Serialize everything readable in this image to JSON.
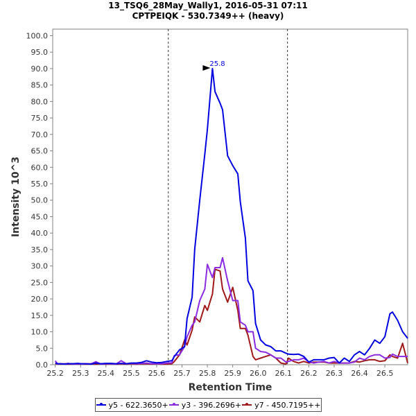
{
  "chart_data": {
    "type": "line",
    "title": "13_TSQ6_28May_Wally1, 2016-05-31 07:11",
    "subtitle": "CPTPEIQK - 530.7349++ (heavy)",
    "xlabel": "Retention Time",
    "ylabel": "Intensity 10^3",
    "xlim": [
      25.19,
      26.59
    ],
    "ylim": [
      0,
      102
    ],
    "xticks": [
      "25.2",
      "25.3",
      "25.4",
      "25.5",
      "25.6",
      "25.7",
      "25.8",
      "25.9",
      "26.0",
      "26.1",
      "26.2",
      "26.3",
      "26.4",
      "26.5"
    ],
    "yticks": [
      "0.0",
      "5.0",
      "10.0",
      "15.0",
      "20.0",
      "25.0",
      "30.0",
      "35.0",
      "40.0",
      "45.0",
      "50.0",
      "55.0",
      "60.0",
      "65.0",
      "70.0",
      "75.0",
      "80.0",
      "85.0",
      "90.0",
      "95.0",
      "100.0"
    ],
    "vlines": [
      25.646,
      26.116
    ],
    "peak_label": "25.8",
    "peak_x": 25.82,
    "peak_y": 90,
    "series": [
      {
        "name": "y5 - 622.3650+",
        "color": "#0000e0",
        "x": [
          25.2,
          25.21,
          25.22,
          25.24,
          25.25,
          25.27,
          25.29,
          25.3,
          25.32,
          25.34,
          25.36,
          25.38,
          25.4,
          25.42,
          25.44,
          25.46,
          25.48,
          25.5,
          25.52,
          25.54,
          25.56,
          25.58,
          25.6,
          25.62,
          25.64,
          25.66,
          25.67,
          25.69,
          25.71,
          25.72,
          25.74,
          25.75,
          25.77,
          25.79,
          25.8,
          25.82,
          25.83,
          25.85,
          25.86,
          25.88,
          25.9,
          25.92,
          25.93,
          25.95,
          25.96,
          25.98,
          25.99,
          26.01,
          26.03,
          26.05,
          26.07,
          26.09,
          26.11,
          26.12,
          26.14,
          26.16,
          26.18,
          26.2,
          26.22,
          26.24,
          26.26,
          26.28,
          26.3,
          26.32,
          26.34,
          26.36,
          26.38,
          26.4,
          26.42,
          26.44,
          26.46,
          26.48,
          26.5,
          26.52,
          26.53,
          26.55,
          26.57,
          26.59
        ],
        "y": [
          0.5,
          0.3,
          0.3,
          0.2,
          0.3,
          0.3,
          0.4,
          0.3,
          0.3,
          0.2,
          0.5,
          0.3,
          0.4,
          0.4,
          0.3,
          0.4,
          0.3,
          0.5,
          0.5,
          0.7,
          1.2,
          0.8,
          0.6,
          0.7,
          1.0,
          1.2,
          2.5,
          4.5,
          5.5,
          14,
          20.5,
          35,
          50,
          64,
          71.5,
          90,
          83,
          79.5,
          77.5,
          63.5,
          60.5,
          58,
          49.5,
          38.5,
          25.5,
          22.5,
          12.5,
          7.5,
          6,
          5.5,
          4.2,
          4.2,
          3.5,
          3.2,
          3.1,
          3.2,
          2.5,
          0.8,
          1.5,
          1.5,
          1.5,
          2,
          2.2,
          0.5,
          2,
          1,
          3,
          4,
          3,
          5,
          7.5,
          6.5,
          8.5,
          15.5,
          16,
          13.5,
          10,
          8
        ]
      },
      {
        "name": "y3 - 396.2696+",
        "color": "#8a2be2",
        "x": [
          25.2,
          25.21,
          25.22,
          25.24,
          25.25,
          25.27,
          25.29,
          25.3,
          25.32,
          25.34,
          25.36,
          25.38,
          25.4,
          25.42,
          25.44,
          25.46,
          25.48,
          25.5,
          25.52,
          25.54,
          25.56,
          25.58,
          25.6,
          25.62,
          25.64,
          25.66,
          25.67,
          25.69,
          25.71,
          25.72,
          25.74,
          25.75,
          25.77,
          25.79,
          25.8,
          25.82,
          25.83,
          25.85,
          25.86,
          25.88,
          25.9,
          25.92,
          25.93,
          25.95,
          25.96,
          25.98,
          25.99,
          26.01,
          26.03,
          26.05,
          26.07,
          26.09,
          26.11,
          26.12,
          26.14,
          26.16,
          26.18,
          26.2,
          26.22,
          26.24,
          26.26,
          26.28,
          26.3,
          26.32,
          26.34,
          26.36,
          26.38,
          26.4,
          26.42,
          26.44,
          26.46,
          26.48,
          26.5,
          26.52,
          26.53,
          26.55,
          26.57,
          26.59
        ],
        "y": [
          1.2,
          0.2,
          0.3,
          0.2,
          0.4,
          0.2,
          0.3,
          0.2,
          0.3,
          0.2,
          0.9,
          0.2,
          0.3,
          0.3,
          0.2,
          1.2,
          0.3,
          0.4,
          0.3,
          0.4,
          0.5,
          0.3,
          0.3,
          0.3,
          0.5,
          0.6,
          2.8,
          3,
          5.5,
          8.5,
          12,
          13,
          19.5,
          23,
          30.5,
          26.5,
          29.5,
          29.5,
          32.5,
          25.5,
          19.5,
          19.5,
          13,
          12,
          10,
          10,
          5,
          4,
          3.8,
          3,
          2,
          2,
          0.8,
          1,
          1.5,
          1.5,
          2,
          0.8,
          0.5,
          0.8,
          1,
          0.5,
          1,
          0.5,
          0.5,
          0.5,
          0.8,
          2,
          1.5,
          2.5,
          3,
          3,
          2,
          2.2,
          3.2,
          2.5,
          2.5,
          2.5
        ]
      },
      {
        "name": "y7 - 450.7195++",
        "color": "#a01818",
        "x": [
          25.2,
          25.21,
          25.22,
          25.24,
          25.25,
          25.27,
          25.29,
          25.3,
          25.32,
          25.34,
          25.36,
          25.38,
          25.4,
          25.42,
          25.44,
          25.46,
          25.48,
          25.5,
          25.52,
          25.54,
          25.56,
          25.58,
          25.6,
          25.62,
          25.64,
          25.66,
          25.67,
          25.69,
          25.71,
          25.72,
          25.74,
          25.75,
          25.77,
          25.79,
          25.8,
          25.82,
          25.83,
          25.85,
          25.86,
          25.88,
          25.9,
          25.92,
          25.93,
          25.95,
          25.96,
          25.98,
          25.99,
          26.01,
          26.03,
          26.05,
          26.07,
          26.09,
          26.11,
          26.12,
          26.14,
          26.16,
          26.18,
          26.2,
          26.22,
          26.24,
          26.26,
          26.28,
          26.3,
          26.32,
          26.34,
          26.36,
          26.38,
          26.4,
          26.42,
          26.44,
          26.46,
          26.48,
          26.5,
          26.52,
          26.53,
          26.55,
          26.57,
          26.59
        ],
        "y": [
          0.3,
          0.3,
          0.2,
          0.3,
          0.2,
          0.3,
          0.2,
          0.3,
          0.2,
          0.3,
          0.2,
          0.3,
          0.2,
          0.3,
          0.2,
          0.3,
          0.2,
          0.3,
          0.2,
          0.3,
          0.3,
          0.2,
          0.3,
          0.2,
          0.2,
          0.3,
          1,
          3,
          7.5,
          6,
          10.5,
          14.5,
          13,
          18,
          16.5,
          21.5,
          29,
          28.5,
          23,
          19,
          23.5,
          16.5,
          11,
          11,
          9,
          2.5,
          1.5,
          2,
          2.5,
          3,
          2,
          0.5,
          0.2,
          2,
          1,
          0.5,
          1,
          0.5,
          0.8,
          0.8,
          0.8,
          0.5,
          0.5,
          0.5,
          0.5,
          0.5,
          1,
          0.8,
          1.2,
          1.5,
          1.5,
          1,
          1.2,
          3,
          2.5,
          2,
          6.5,
          0.5
        ]
      }
    ]
  }
}
